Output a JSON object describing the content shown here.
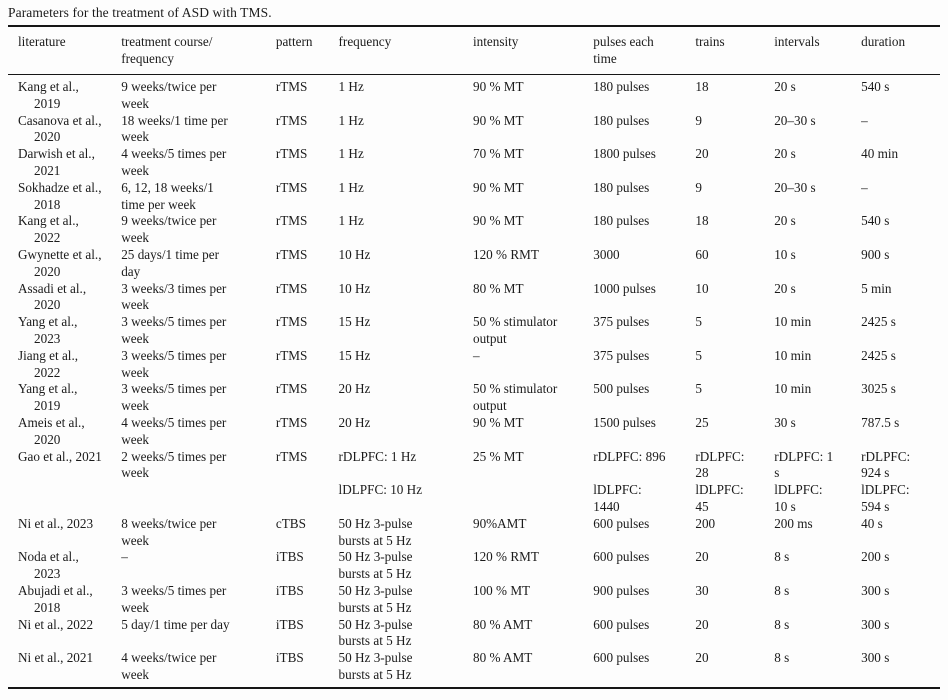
{
  "caption": "Parameters for the treatment of ASD with TMS.",
  "colors": {
    "background": "#fdfdfd",
    "text": "#1b1b1b",
    "rule": "#161616"
  },
  "table": {
    "column_keys": [
      "literature",
      "treatment-course",
      "pattern",
      "frequency",
      "intensity",
      "pulses-each-time",
      "trains",
      "intervals",
      "duration"
    ],
    "columns": [
      "literature",
      "treatment course/\nfrequency",
      "pattern",
      "frequency",
      "intensity",
      "pulses each\ntime",
      "trains",
      "intervals",
      "duration"
    ],
    "rows": [
      [
        "Kang et al.,\n2019",
        "9 weeks/twice per\nweek",
        "rTMS",
        "1 Hz",
        "90 % MT",
        "180 pulses",
        "18",
        "20 s",
        "540 s"
      ],
      [
        "Casanova et al.,\n2020",
        "18 weeks/1 time per\nweek",
        "rTMS",
        "1 Hz",
        "90 % MT",
        "180 pulses",
        "9",
        "20–30 s",
        "–"
      ],
      [
        "Darwish et al.,\n2021",
        "4 weeks/5 times per\nweek",
        "rTMS",
        "1 Hz",
        "70 % MT",
        "1800 pulses",
        "20",
        "20 s",
        "40 min"
      ],
      [
        "Sokhadze et al.,\n2018",
        "6, 12, 18 weeks/1\ntime per week",
        "rTMS",
        "1 Hz",
        "90 % MT",
        "180 pulses",
        "9",
        "20–30 s",
        "–"
      ],
      [
        "Kang et al.,\n2022",
        "9 weeks/twice per\nweek",
        "rTMS",
        "1 Hz",
        "90 % MT",
        "180 pulses",
        "18",
        "20 s",
        "540 s"
      ],
      [
        "Gwynette et al.,\n2020",
        "25 days/1 time per\nday",
        "rTMS",
        "10 Hz",
        "120 % RMT",
        "3000",
        "60",
        "10 s",
        "900 s"
      ],
      [
        "Assadi et al.,\n2020",
        "3 weeks/3 times per\nweek",
        "rTMS",
        "10 Hz",
        "80 % MT",
        "1000 pulses",
        "10",
        "20 s",
        "5 min"
      ],
      [
        "Yang et al.,\n2023",
        "3 weeks/5 times per\nweek",
        "rTMS",
        "15 Hz",
        "50 % stimulator\noutput",
        "375 pulses",
        "5",
        "10 min",
        "2425 s"
      ],
      [
        "Jiang et al.,\n2022",
        "3 weeks/5 times per\nweek",
        "rTMS",
        "15 Hz",
        "–",
        "375 pulses",
        "5",
        "10 min",
        "2425 s"
      ],
      [
        "Yang et al.,\n2019",
        "3 weeks/5 times per\nweek",
        "rTMS",
        "20 Hz",
        "50 % stimulator\noutput",
        "500 pulses",
        "5",
        "10 min",
        "3025 s"
      ],
      [
        "Ameis et al.,\n2020",
        "4 weeks/5 times per\nweek",
        "rTMS",
        "20 Hz",
        "90 % MT",
        "1500 pulses",
        "25",
        "30 s",
        "787.5 s"
      ],
      [
        "Gao et al., 2021",
        "2 weeks/5 times per\nweek",
        "rTMS",
        "rDLPFC: 1 Hz\n\nlDLPFC: 10 Hz",
        "25 % MT",
        "rDLPFC: 896\n\nlDLPFC:\n1440",
        "rDLPFC:\n28\nlDLPFC:\n45",
        "rDLPFC: 1\ns\nlDLPFC:\n10 s",
        "rDLPFC:\n924 s\nlDLPFC:\n594 s"
      ],
      [
        "Ni et al., 2023",
        "8 weeks/twice per\nweek",
        "cTBS",
        "50 Hz 3-pulse\nbursts at 5 Hz",
        "90%AMT",
        "600 pulses",
        "200",
        "200 ms",
        "40 s"
      ],
      [
        "Noda et al.,\n2023",
        "–",
        "iTBS",
        "50 Hz 3-pulse\nbursts at 5 Hz",
        "120 % RMT",
        "600 pulses",
        "20",
        "8 s",
        "200 s"
      ],
      [
        "Abujadi et al.,\n2018",
        "3 weeks/5 times per\nweek",
        "iTBS",
        "50 Hz 3-pulse\nbursts at 5 Hz",
        "100 % MT",
        "900 pulses",
        "30",
        "8 s",
        "300 s"
      ],
      [
        "Ni et al., 2022",
        "5 day/1 time per day",
        "iTBS",
        "50 Hz 3-pulse\nbursts at 5 Hz",
        "80 % AMT",
        "600 pulses",
        "20",
        "8 s",
        "300 s"
      ],
      [
        "Ni et al., 2021",
        "4 weeks/twice per\nweek",
        "iTBS",
        "50 Hz 3-pulse\nbursts at 5 Hz",
        "80 % AMT",
        "600 pulses",
        "20",
        "8 s",
        "300 s"
      ]
    ]
  }
}
